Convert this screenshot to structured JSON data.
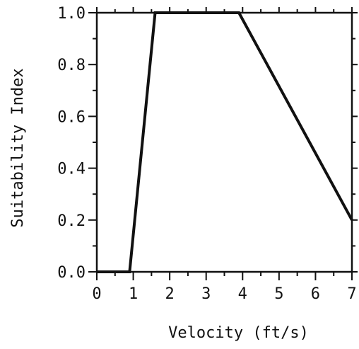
{
  "chart_data": {
    "type": "line",
    "title": "",
    "xlabel": "Velocity (ft/s)",
    "ylabel": "Suitability Index",
    "xlim": [
      0,
      7
    ],
    "ylim": [
      0,
      1
    ],
    "x_ticks": [
      "0",
      "1",
      "2",
      "3",
      "4",
      "5",
      "6",
      "7"
    ],
    "y_ticks": [
      "0.0",
      "0.2",
      "0.4",
      "0.6",
      "0.8",
      "1.0"
    ],
    "grid": false,
    "legend": "none",
    "series": [
      {
        "x": [
          0,
          0.9,
          1.6,
          3.9,
          7.0
        ],
        "y": [
          0.0,
          0.0,
          1.0,
          1.0,
          0.2
        ]
      }
    ]
  }
}
